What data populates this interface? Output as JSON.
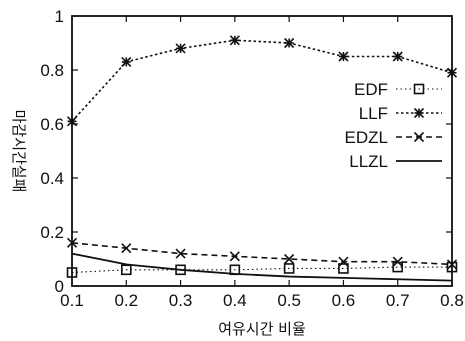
{
  "chart_data": {
    "type": "line",
    "xlabel": "여유시간 비율",
    "ylabel": "마감시간실패",
    "x": [
      0.1,
      0.2,
      0.3,
      0.4,
      0.5,
      0.6,
      0.7,
      0.8
    ],
    "x_tick_labels": [
      "0.1",
      "0.2",
      "0.3",
      "0.4",
      "0.5",
      "0.6",
      "0.7",
      "0.8"
    ],
    "y_tick_labels": [
      "0",
      "0.2",
      "0.4",
      "0.6",
      "0.8",
      "1"
    ],
    "xlim": [
      0.1,
      0.8
    ],
    "ylim": [
      0,
      1
    ],
    "grid": false,
    "legend_position": "right-upper",
    "series": [
      {
        "name": "EDF",
        "marker": "square",
        "line": "dotted",
        "values": [
          0.05,
          0.06,
          0.06,
          0.06,
          0.065,
          0.065,
          0.07,
          0.07
        ]
      },
      {
        "name": "LLF",
        "marker": "asterisk",
        "line": "fine-dash",
        "values": [
          0.61,
          0.83,
          0.88,
          0.91,
          0.9,
          0.85,
          0.85,
          0.79
        ]
      },
      {
        "name": "EDZL",
        "marker": "x",
        "line": "dashed",
        "values": [
          0.16,
          0.14,
          0.12,
          0.11,
          0.1,
          0.09,
          0.09,
          0.08
        ]
      },
      {
        "name": "LLZL",
        "marker": "plus",
        "line": "solid",
        "values": [
          0.12,
          0.08,
          0.06,
          0.045,
          0.035,
          0.03,
          0.025,
          0.02
        ]
      }
    ]
  }
}
